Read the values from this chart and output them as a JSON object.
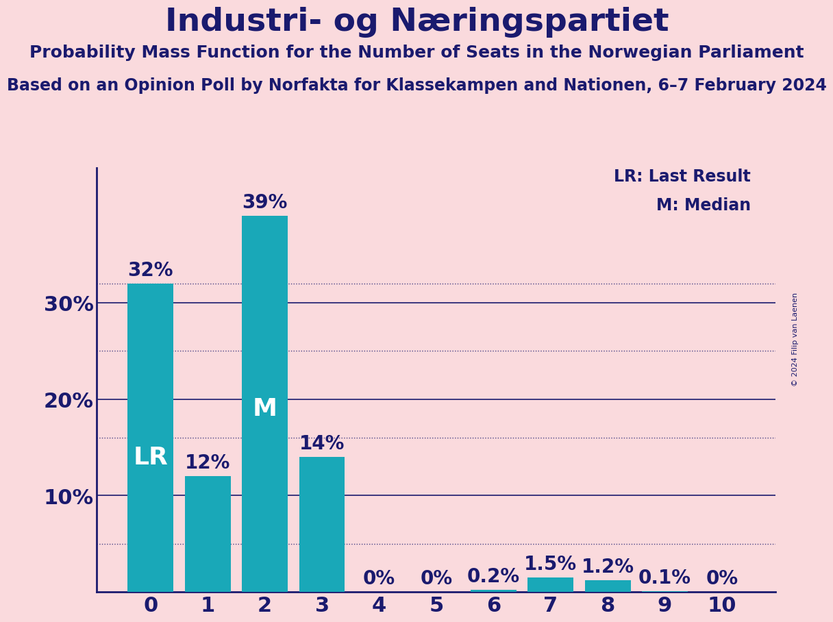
{
  "title": "Industri- og Næringspartiet",
  "subtitle": "Probability Mass Function for the Number of Seats in the Norwegian Parliament",
  "source": "Based on an Opinion Poll by Norfakta for Klassekampen and Nationen, 6–7 February 2024",
  "copyright": "© 2024 Filip van Laenen",
  "categories": [
    0,
    1,
    2,
    3,
    4,
    5,
    6,
    7,
    8,
    9,
    10
  ],
  "values": [
    0.32,
    0.12,
    0.39,
    0.14,
    0.0,
    0.0,
    0.002,
    0.015,
    0.012,
    0.001,
    0.0
  ],
  "labels": [
    "32%",
    "12%",
    "39%",
    "14%",
    "0%",
    "0%",
    "0.2%",
    "1.5%",
    "1.2%",
    "0.1%",
    "0%"
  ],
  "bar_color": "#19A8B8",
  "background_color": "#FADADD",
  "title_color": "#1a1a6e",
  "axis_color": "#1a1a6e",
  "label_color_inside": "#FFFFFF",
  "label_color_outside": "#1a1a6e",
  "lr_bar": 0,
  "median_bar": 2,
  "solid_grid_lines": [
    0.1,
    0.2,
    0.3
  ],
  "dotted_grid_lines": [
    0.32,
    0.25,
    0.16,
    0.05
  ],
  "ylim": [
    0,
    0.44
  ],
  "yticks": [
    0.1,
    0.2,
    0.3
  ],
  "ytick_labels": [
    "10%",
    "20%",
    "30%"
  ],
  "title_fontsize": 34,
  "subtitle_fontsize": 18,
  "source_fontsize": 17,
  "legend_fontsize": 17,
  "tick_fontsize": 22,
  "bar_label_fontsize": 20,
  "lr_m_fontsize": 26
}
